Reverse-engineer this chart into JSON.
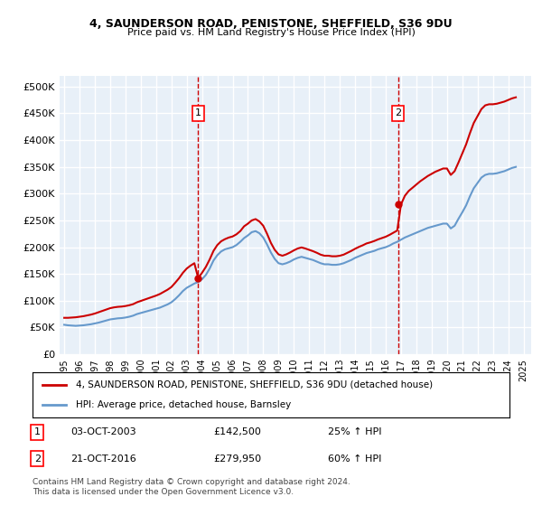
{
  "title": "4, SAUNDERSON ROAD, PENISTONE, SHEFFIELD, S36 9DU",
  "subtitle": "Price paid vs. HM Land Registry's House Price Index (HPI)",
  "ylabel_ticks": [
    "£0",
    "£50K",
    "£100K",
    "£150K",
    "£200K",
    "£250K",
    "£300K",
    "£350K",
    "£400K",
    "£450K",
    "£500K"
  ],
  "ytick_values": [
    0,
    50000,
    100000,
    150000,
    200000,
    250000,
    300000,
    350000,
    400000,
    450000,
    500000
  ],
  "ylim": [
    0,
    520000
  ],
  "xlim_start": 1995.0,
  "xlim_end": 2025.5,
  "background_color": "#e8f0f8",
  "plot_bg_color": "#e8f0f8",
  "grid_color": "#ffffff",
  "red_line_color": "#cc0000",
  "blue_line_color": "#6699cc",
  "marker1_year": 2003.75,
  "marker1_price": 142500,
  "marker1_label": "1",
  "marker1_date": "03-OCT-2003",
  "marker1_hpi": "25% ↑ HPI",
  "marker2_year": 2016.8,
  "marker2_price": 279950,
  "marker2_label": "2",
  "marker2_date": "21-OCT-2016",
  "marker2_hpi": "60% ↑ HPI",
  "legend_line1": "4, SAUNDERSON ROAD, PENISTONE, SHEFFIELD, S36 9DU (detached house)",
  "legend_line2": "HPI: Average price, detached house, Barnsley",
  "footnote": "Contains HM Land Registry data © Crown copyright and database right 2024.\nThis data is licensed under the Open Government Licence v3.0.",
  "hpi_data": {
    "years": [
      1995.0,
      1995.25,
      1995.5,
      1995.75,
      1996.0,
      1996.25,
      1996.5,
      1996.75,
      1997.0,
      1997.25,
      1997.5,
      1997.75,
      1998.0,
      1998.25,
      1998.5,
      1998.75,
      1999.0,
      1999.25,
      1999.5,
      1999.75,
      2000.0,
      2000.25,
      2000.5,
      2000.75,
      2001.0,
      2001.25,
      2001.5,
      2001.75,
      2002.0,
      2002.25,
      2002.5,
      2002.75,
      2003.0,
      2003.25,
      2003.5,
      2003.75,
      2004.0,
      2004.25,
      2004.5,
      2004.75,
      2005.0,
      2005.25,
      2005.5,
      2005.75,
      2006.0,
      2006.25,
      2006.5,
      2006.75,
      2007.0,
      2007.25,
      2007.5,
      2007.75,
      2008.0,
      2008.25,
      2008.5,
      2008.75,
      2009.0,
      2009.25,
      2009.5,
      2009.75,
      2010.0,
      2010.25,
      2010.5,
      2010.75,
      2011.0,
      2011.25,
      2011.5,
      2011.75,
      2012.0,
      2012.25,
      2012.5,
      2012.75,
      2013.0,
      2013.25,
      2013.5,
      2013.75,
      2014.0,
      2014.25,
      2014.5,
      2014.75,
      2015.0,
      2015.25,
      2015.5,
      2015.75,
      2016.0,
      2016.25,
      2016.5,
      2016.75,
      2017.0,
      2017.25,
      2017.5,
      2017.75,
      2018.0,
      2018.25,
      2018.5,
      2018.75,
      2019.0,
      2019.25,
      2019.5,
      2019.75,
      2020.0,
      2020.25,
      2020.5,
      2020.75,
      2021.0,
      2021.25,
      2021.5,
      2021.75,
      2022.0,
      2022.25,
      2022.5,
      2022.75,
      2023.0,
      2023.25,
      2023.5,
      2023.75,
      2024.0,
      2024.25,
      2024.5
    ],
    "values": [
      55000,
      54000,
      53500,
      53000,
      53500,
      54000,
      55000,
      56000,
      57500,
      59000,
      61000,
      63000,
      65000,
      66000,
      67000,
      67500,
      68500,
      70000,
      72000,
      75000,
      77000,
      79000,
      81000,
      83000,
      85000,
      87000,
      90000,
      93000,
      97000,
      103000,
      110000,
      118000,
      124000,
      128000,
      132000,
      135000,
      140000,
      148000,
      160000,
      175000,
      185000,
      192000,
      196000,
      198000,
      200000,
      204000,
      210000,
      217000,
      222000,
      228000,
      230000,
      226000,
      218000,
      205000,
      190000,
      178000,
      170000,
      168000,
      170000,
      173000,
      177000,
      180000,
      182000,
      180000,
      178000,
      176000,
      173000,
      170000,
      168000,
      168000,
      167000,
      167000,
      168000,
      170000,
      173000,
      176000,
      180000,
      183000,
      186000,
      189000,
      191000,
      193000,
      196000,
      198000,
      200000,
      203000,
      207000,
      210000,
      214000,
      218000,
      221000,
      224000,
      227000,
      230000,
      233000,
      236000,
      238000,
      240000,
      242000,
      244000,
      244000,
      235000,
      240000,
      253000,
      265000,
      278000,
      295000,
      310000,
      320000,
      330000,
      335000,
      337000,
      337000,
      338000,
      340000,
      342000,
      345000,
      348000,
      350000
    ]
  },
  "price_data": {
    "years": [
      2003.75,
      2016.8
    ],
    "values": [
      142500,
      279950
    ]
  },
  "red_line_years": [
    1995.0,
    1995.25,
    1995.5,
    1995.75,
    1996.0,
    1996.25,
    1996.5,
    1996.75,
    1997.0,
    1997.25,
    1997.5,
    1997.75,
    1998.0,
    1998.25,
    1998.5,
    1998.75,
    1999.0,
    1999.25,
    1999.5,
    1999.75,
    2000.0,
    2000.25,
    2000.5,
    2000.75,
    2001.0,
    2001.25,
    2001.5,
    2001.75,
    2002.0,
    2002.25,
    2002.5,
    2002.75,
    2003.0,
    2003.25,
    2003.5,
    2003.75,
    2004.0,
    2004.25,
    2004.5,
    2004.75,
    2005.0,
    2005.25,
    2005.5,
    2005.75,
    2006.0,
    2006.25,
    2006.5,
    2006.75,
    2007.0,
    2007.25,
    2007.5,
    2007.75,
    2008.0,
    2008.25,
    2008.5,
    2008.75,
    2009.0,
    2009.25,
    2009.5,
    2009.75,
    2010.0,
    2010.25,
    2010.5,
    2010.75,
    2011.0,
    2011.25,
    2011.5,
    2011.75,
    2012.0,
    2012.25,
    2012.5,
    2012.75,
    2013.0,
    2013.25,
    2013.5,
    2013.75,
    2014.0,
    2014.25,
    2014.5,
    2014.75,
    2015.0,
    2015.25,
    2015.5,
    2015.75,
    2016.0,
    2016.25,
    2016.5,
    2016.75,
    2017.0,
    2017.25,
    2017.5,
    2017.75,
    2018.0,
    2018.25,
    2018.5,
    2018.75,
    2019.0,
    2019.25,
    2019.5,
    2019.75,
    2020.0,
    2020.25,
    2020.5,
    2020.75,
    2021.0,
    2021.25,
    2021.5,
    2021.75,
    2022.0,
    2022.25,
    2022.5,
    2022.75,
    2023.0,
    2023.25,
    2023.5,
    2023.75,
    2024.0,
    2024.25,
    2024.5
  ],
  "red_line_values": [
    68000,
    68000,
    68500,
    69000,
    70000,
    71000,
    72500,
    74000,
    76000,
    78500,
    81000,
    83500,
    86000,
    87500,
    88500,
    89000,
    90000,
    91500,
    93500,
    97000,
    99500,
    102000,
    104500,
    107000,
    109500,
    112500,
    116500,
    120500,
    125500,
    133500,
    142000,
    152000,
    160000,
    165500,
    170000,
    142500,
    152000,
    163000,
    177000,
    193000,
    204000,
    211000,
    215000,
    218000,
    220000,
    224000,
    230000,
    239000,
    244000,
    250000,
    252500,
    248000,
    240000,
    225000,
    208000,
    195000,
    186500,
    184000,
    186500,
    190000,
    194000,
    197500,
    199500,
    197500,
    195000,
    192500,
    189500,
    186000,
    184000,
    184000,
    183000,
    183000,
    184000,
    186000,
    189500,
    193000,
    197000,
    200500,
    203500,
    207000,
    209000,
    211500,
    214500,
    217000,
    219500,
    223000,
    227000,
    231000,
    279950,
    296000,
    305000,
    311000,
    317000,
    323000,
    328000,
    333000,
    337000,
    341000,
    344000,
    347000,
    347000,
    335000,
    342000,
    358000,
    375000,
    392000,
    413000,
    432000,
    445000,
    458000,
    465000,
    467000,
    467000,
    468000,
    470000,
    472000,
    475000,
    478000,
    480000
  ]
}
